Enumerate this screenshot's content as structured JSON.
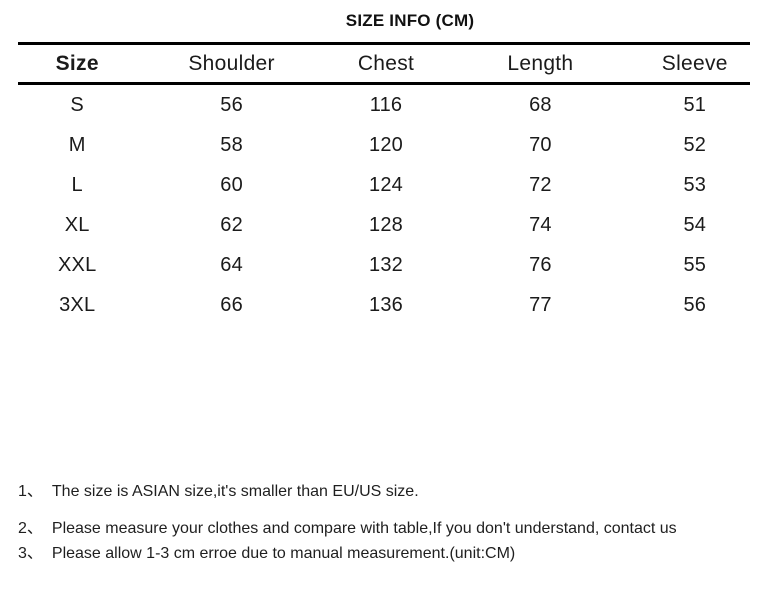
{
  "title": "SIZE INFO (CM)",
  "colors": {
    "background": "#ffffff",
    "text": "#1b1b1b",
    "rule": "#000000"
  },
  "table": {
    "headers": [
      "Size",
      "Shoulder",
      "Chest",
      "Length",
      "Sleeve"
    ],
    "rows": [
      [
        "S",
        "56",
        "116",
        "68",
        "51"
      ],
      [
        "M",
        "58",
        "120",
        "70",
        "52"
      ],
      [
        "L",
        "60",
        "124",
        "72",
        "53"
      ],
      [
        "XL",
        "62",
        "128",
        "74",
        "54"
      ],
      [
        "XXL",
        "64",
        "132",
        "76",
        "55"
      ],
      [
        "3XL",
        "66",
        "136",
        "77",
        "56"
      ]
    ]
  },
  "notes": [
    {
      "marker": "1、",
      "text": "The size is ASIAN size,it's smaller than EU/US size."
    },
    {
      "marker": "2、",
      "text": "Please measure your clothes and compare with table,If you don't understand, contact us"
    },
    {
      "marker": "3、",
      "text": "Please allow 1-3 cm erroe due to manual measurement.(unit:CM)"
    }
  ]
}
